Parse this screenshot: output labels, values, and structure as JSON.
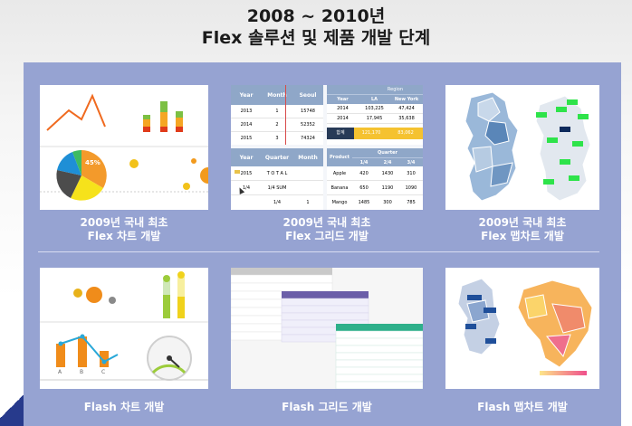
{
  "header": {
    "title_line1": "2008 ~ 2010년",
    "title_line2": "Flex 솔루션 및 제품 개발 단계"
  },
  "cards": {
    "flex_chart": {
      "line1": "2009년 국내 최초",
      "line2": "Flex 차트 개발",
      "pie_label": "45%"
    },
    "flex_grid": {
      "line1": "2009년 국내 최초",
      "line2": "Flex 그리드 개발"
    },
    "flex_map": {
      "line1": "2009년 국내 최초",
      "line2": "Flex 맵차트 개발"
    },
    "flash_chart": {
      "line1": "Flash 차트 개발",
      "bar_labels": [
        "A",
        "B",
        "C"
      ]
    },
    "flash_grid": {
      "line1": "Flash 그리드 개발"
    },
    "flash_map": {
      "line1": "Flash 맵차트 개발"
    }
  },
  "grid1": {
    "headers": [
      "Year",
      "Month",
      "Seoul"
    ],
    "rows": [
      [
        "2013",
        "1",
        "15748"
      ],
      [
        "2014",
        "2",
        "52352"
      ],
      [
        "2015",
        "3",
        "74324"
      ]
    ]
  },
  "grid2": {
    "region": "Region",
    "headers": [
      "Year",
      "LA",
      "New York"
    ],
    "rows": [
      [
        "2014",
        "103,225",
        "47,424"
      ],
      [
        "2014",
        "17,945",
        "35,638"
      ]
    ],
    "total": [
      "합계",
      "121,170",
      "83,062"
    ]
  },
  "grid3": {
    "headers": [
      "Year",
      "Quarter",
      "Month"
    ],
    "rows": [
      [
        "2015",
        "T O T A L",
        ""
      ],
      [
        "1/4",
        "1/4 SUM",
        ""
      ],
      [
        "",
        "1/4",
        "1"
      ]
    ]
  },
  "grid4": {
    "quarter": "Quarter",
    "headers": [
      "Product",
      "1/4",
      "2/4",
      "3/4"
    ],
    "rows": [
      [
        "Apple",
        "420",
        "1430",
        "310"
      ],
      [
        "Banana",
        "650",
        "1190",
        "1090"
      ],
      [
        "Mango",
        "1485",
        "300",
        "785"
      ]
    ]
  },
  "colors": {
    "panel": "#96a3d2",
    "accent": "#273a8c",
    "grid_header": "#8fa7c8"
  }
}
